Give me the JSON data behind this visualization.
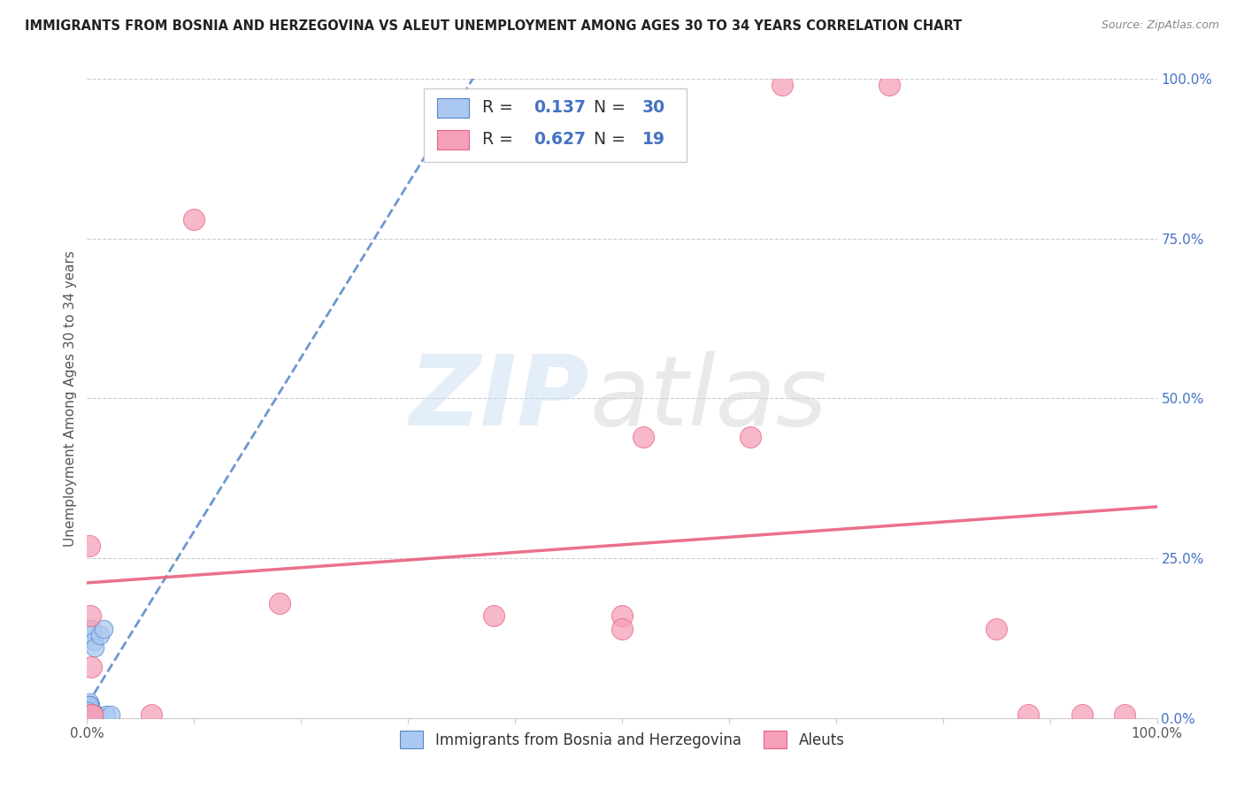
{
  "title": "IMMIGRANTS FROM BOSNIA AND HERZEGOVINA VS ALEUT UNEMPLOYMENT AMONG AGES 30 TO 34 YEARS CORRELATION CHART",
  "source": "Source: ZipAtlas.com",
  "ylabel": "Unemployment Among Ages 30 to 34 years",
  "xlim": [
    0,
    1.0
  ],
  "ylim": [
    0,
    1.0
  ],
  "xticks": [
    0.0,
    0.1,
    0.2,
    0.3,
    0.4,
    0.5,
    0.6,
    0.7,
    0.8,
    0.9,
    1.0
  ],
  "xticklabels_ends": {
    "0.0": "0.0%",
    "1.0": "100.0%"
  },
  "yticks_right": [
    0.0,
    0.25,
    0.5,
    0.75,
    1.0
  ],
  "yticklabels_right": [
    "0.0%",
    "25.0%",
    "50.0%",
    "75.0%",
    "100.0%"
  ],
  "blue_R": 0.137,
  "blue_N": 30,
  "pink_R": 0.627,
  "pink_N": 19,
  "blue_color": "#aac8f0",
  "pink_color": "#f5a0b8",
  "blue_edge_color": "#5585c8",
  "pink_edge_color": "#e86080",
  "blue_line_color": "#5585c8",
  "pink_line_color": "#e86080",
  "legend_label_blue": "Immigrants from Bosnia and Herzegovina",
  "legend_label_pink": "Aleuts",
  "blue_points_x": [
    0.001,
    0.002,
    0.001,
    0.003,
    0.002,
    0.001,
    0.002,
    0.003,
    0.001,
    0.002,
    0.001,
    0.002,
    0.001,
    0.003,
    0.002,
    0.001,
    0.003,
    0.002,
    0.001,
    0.002,
    0.004,
    0.005,
    0.006,
    0.007,
    0.008,
    0.009,
    0.012,
    0.015,
    0.018,
    0.022
  ],
  "blue_points_y": [
    0.005,
    0.01,
    0.015,
    0.02,
    0.005,
    0.01,
    0.025,
    0.005,
    0.02,
    0.01,
    0.005,
    0.015,
    0.005,
    0.005,
    0.02,
    0.01,
    0.005,
    0.005,
    0.005,
    0.005,
    0.13,
    0.14,
    0.12,
    0.11,
    0.005,
    0.005,
    0.13,
    0.14,
    0.005,
    0.005
  ],
  "pink_points_x": [
    0.002,
    0.003,
    0.004,
    0.005,
    0.06,
    0.1,
    0.18,
    0.5,
    0.52,
    0.62,
    0.65,
    0.75,
    0.85,
    0.88,
    0.93,
    0.97,
    0.005,
    0.38,
    0.5
  ],
  "pink_points_y": [
    0.27,
    0.16,
    0.08,
    0.005,
    0.005,
    0.78,
    0.18,
    0.16,
    0.44,
    0.44,
    0.99,
    0.99,
    0.14,
    0.005,
    0.005,
    0.005,
    0.005,
    0.16,
    0.14
  ]
}
